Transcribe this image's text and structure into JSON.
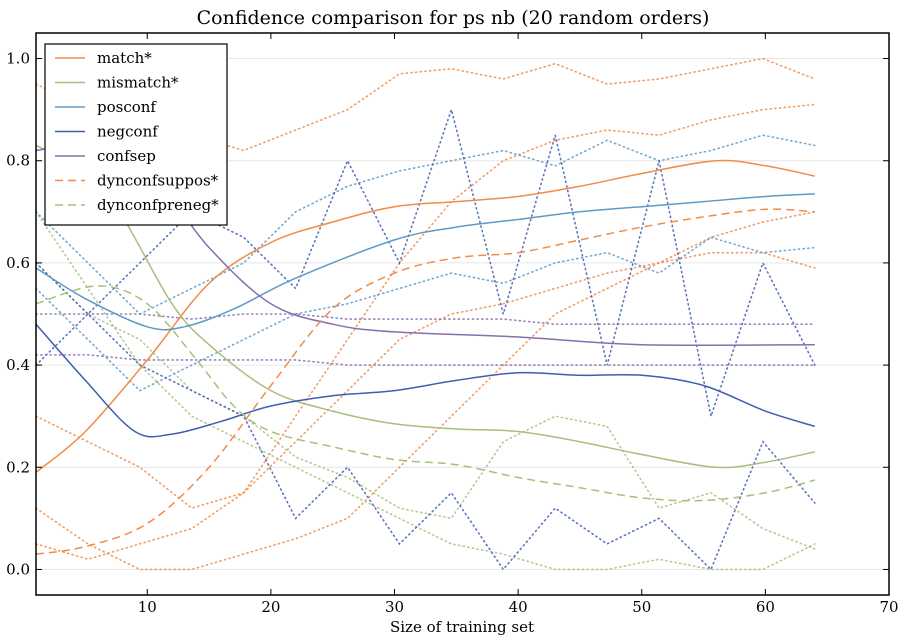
{
  "chart_data": {
    "type": "line",
    "title": "Confidence comparison for ps nb (20 random orders)",
    "xlabel": "Size of training set",
    "ylabel": "",
    "xlim": [
      1,
      70
    ],
    "ylim": [
      -0.05,
      1.05
    ],
    "xticks": [
      10,
      20,
      30,
      40,
      50,
      60,
      70
    ],
    "xtick_labels": [
      "10",
      "20",
      "30",
      "40",
      "50",
      "60",
      "70"
    ],
    "yticks": [
      0.0,
      0.2,
      0.4,
      0.6,
      0.8,
      1.0
    ],
    "ytick_labels": [
      "0.0",
      "0.2",
      "0.4",
      "0.6",
      "0.8",
      "1.0"
    ],
    "grid": "horizontal",
    "legend_position": "top-left",
    "series": [
      {
        "name": "match*",
        "color": "#f08c48",
        "style": "solid",
        "x": [
          1,
          5,
          10,
          15,
          20,
          25,
          30,
          35,
          40,
          45,
          50,
          56,
          60,
          64
        ],
        "y": [
          0.19,
          0.27,
          0.41,
          0.56,
          0.64,
          0.68,
          0.71,
          0.72,
          0.73,
          0.75,
          0.775,
          0.8,
          0.79,
          0.77
        ]
      },
      {
        "name": "mismatch*",
        "color": "#a8bf7c",
        "style": "solid",
        "x": [
          1,
          5,
          8,
          12,
          15,
          20,
          25,
          30,
          35,
          40,
          45,
          50,
          56,
          60,
          64
        ],
        "y": [
          0.83,
          0.78,
          0.69,
          0.52,
          0.44,
          0.35,
          0.31,
          0.285,
          0.275,
          0.27,
          0.25,
          0.225,
          0.2,
          0.21,
          0.23
        ]
      },
      {
        "name": "posconf",
        "color": "#5e9ac8",
        "style": "solid",
        "x": [
          1,
          5,
          10,
          13,
          17,
          22,
          30,
          35,
          40,
          45,
          50,
          55,
          60,
          64
        ],
        "y": [
          0.59,
          0.53,
          0.475,
          0.475,
          0.51,
          0.57,
          0.645,
          0.67,
          0.685,
          0.7,
          0.71,
          0.72,
          0.73,
          0.735
        ]
      },
      {
        "name": "negconf",
        "color": "#3f5eb0",
        "style": "solid",
        "x": [
          1,
          5,
          9,
          12,
          16,
          20,
          25,
          30,
          35,
          40,
          45,
          50,
          55,
          60,
          64
        ],
        "y": [
          0.48,
          0.37,
          0.27,
          0.265,
          0.29,
          0.32,
          0.34,
          0.35,
          0.37,
          0.385,
          0.38,
          0.38,
          0.36,
          0.31,
          0.28
        ]
      },
      {
        "name": "confsep",
        "color": "#8470b0",
        "style": "solid",
        "x": [
          1,
          5,
          10,
          15,
          20,
          25,
          30,
          40,
          50,
          64
        ],
        "y": [
          0.82,
          0.83,
          0.78,
          0.63,
          0.52,
          0.48,
          0.465,
          0.455,
          0.44,
          0.44
        ]
      },
      {
        "name": "dynconfsuppos*",
        "color": "#f08c48",
        "style": "dashed",
        "x": [
          1,
          5,
          10,
          15,
          20,
          25,
          30,
          35,
          40,
          45,
          50,
          55,
          60,
          64
        ],
        "y": [
          0.03,
          0.045,
          0.09,
          0.2,
          0.36,
          0.51,
          0.58,
          0.61,
          0.62,
          0.645,
          0.67,
          0.69,
          0.705,
          0.7
        ]
      },
      {
        "name": "dynconfpreneg*",
        "color": "#a8bf7c",
        "style": "dashed",
        "x": [
          1,
          6,
          10,
          14,
          17,
          20,
          25,
          30,
          35,
          40,
          45,
          50,
          55,
          60,
          64
        ],
        "y": [
          0.52,
          0.555,
          0.52,
          0.41,
          0.32,
          0.27,
          0.24,
          0.215,
          0.205,
          0.18,
          0.16,
          0.14,
          0.135,
          0.15,
          0.175
        ]
      }
    ],
    "background_dotted_series": [
      {
        "color": "#f08c48",
        "y": [
          0.95,
          0.9,
          0.93,
          0.85,
          0.82,
          0.86,
          0.9,
          0.97,
          0.98,
          0.96,
          0.99,
          0.95,
          0.96,
          0.98,
          1.0,
          0.96
        ]
      },
      {
        "color": "#f08c48",
        "y": [
          0.12,
          0.05,
          0.0,
          0.0,
          0.03,
          0.06,
          0.1,
          0.2,
          0.3,
          0.4,
          0.5,
          0.55,
          0.6,
          0.65,
          0.68,
          0.7
        ]
      },
      {
        "color": "#f08c48",
        "y": [
          0.3,
          0.25,
          0.2,
          0.12,
          0.15,
          0.3,
          0.45,
          0.6,
          0.72,
          0.8,
          0.84,
          0.86,
          0.85,
          0.88,
          0.9,
          0.91
        ]
      },
      {
        "color": "#f08c48",
        "y": [
          0.05,
          0.02,
          0.05,
          0.08,
          0.15,
          0.25,
          0.35,
          0.45,
          0.5,
          0.52,
          0.55,
          0.58,
          0.6,
          0.62,
          0.62,
          0.59
        ]
      },
      {
        "color": "#a8bf7c",
        "y": [
          0.6,
          0.5,
          0.45,
          0.35,
          0.3,
          0.22,
          0.18,
          0.12,
          0.1,
          0.25,
          0.3,
          0.28,
          0.12,
          0.15,
          0.08,
          0.04
        ]
      },
      {
        "color": "#a8bf7c",
        "y": [
          0.7,
          0.55,
          0.4,
          0.3,
          0.25,
          0.2,
          0.15,
          0.1,
          0.05,
          0.03,
          0.0,
          0.0,
          0.02,
          0.0,
          0.0,
          0.05
        ]
      },
      {
        "color": "#5e9ac8",
        "y": [
          0.7,
          0.6,
          0.5,
          0.55,
          0.6,
          0.7,
          0.75,
          0.78,
          0.8,
          0.82,
          0.79,
          0.84,
          0.8,
          0.82,
          0.85,
          0.83
        ]
      },
      {
        "color": "#5e9ac8",
        "y": [
          0.55,
          0.45,
          0.35,
          0.4,
          0.45,
          0.5,
          0.52,
          0.55,
          0.58,
          0.56,
          0.6,
          0.62,
          0.58,
          0.65,
          0.62,
          0.63
        ]
      },
      {
        "color": "#3f5eb0",
        "y": [
          0.6,
          0.5,
          0.4,
          0.35,
          0.3,
          0.1,
          0.2,
          0.05,
          0.15,
          0.0,
          0.12,
          0.05,
          0.1,
          0.0,
          0.25,
          0.13
        ]
      },
      {
        "color": "#3f5eb0",
        "y": [
          0.4,
          0.5,
          0.6,
          0.7,
          0.65,
          0.55,
          0.8,
          0.6,
          0.9,
          0.5,
          0.85,
          0.4,
          0.8,
          0.3,
          0.6,
          0.4
        ]
      },
      {
        "color": "#8470b0",
        "y": [
          0.5,
          0.5,
          0.5,
          0.49,
          0.5,
          0.5,
          0.49,
          0.49,
          0.49,
          0.49,
          0.48,
          0.48,
          0.48,
          0.48,
          0.48,
          0.48
        ]
      },
      {
        "color": "#8470b0",
        "y": [
          0.42,
          0.42,
          0.41,
          0.41,
          0.41,
          0.41,
          0.4,
          0.4,
          0.4,
          0.4,
          0.4,
          0.4,
          0.4,
          0.4,
          0.4,
          0.4
        ]
      }
    ]
  }
}
